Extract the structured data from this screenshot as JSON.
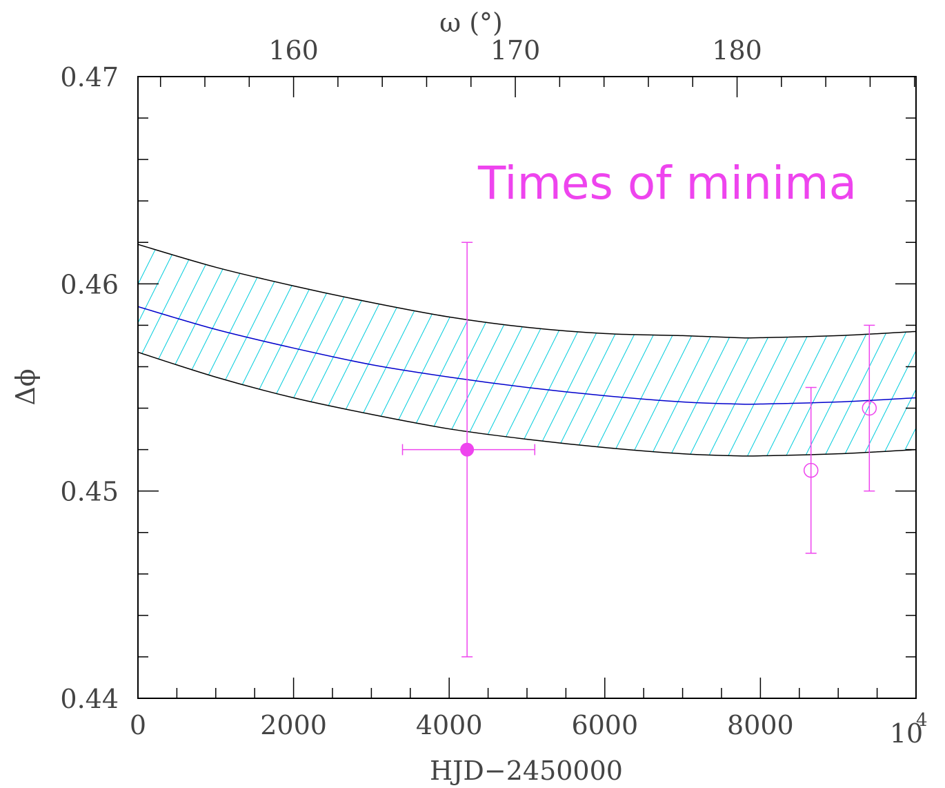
{
  "chart_data": {
    "type": "scatter",
    "title": "",
    "annotation": "Times of minima",
    "xlabel": "HJD−2450000",
    "ylabel": "Δϕ",
    "top_axis_label": "ω (°)",
    "xlim": [
      0,
      10000
    ],
    "ylim": [
      0.44,
      0.47
    ],
    "x_ticks": [
      "0",
      "2000",
      "4000",
      "6000",
      "8000",
      "10"
    ],
    "x_tick_values": [
      0,
      2000,
      4000,
      6000,
      8000,
      10000
    ],
    "x_last_tick_exponent": "4",
    "y_ticks": [
      "0.44",
      "0.45",
      "0.46",
      "0.47"
    ],
    "y_tick_values": [
      0.44,
      0.45,
      0.46,
      0.47
    ],
    "top_ticks": [
      "160",
      "170",
      "180"
    ],
    "top_tick_hjd": [
      2000,
      4850,
      7700
    ],
    "model_curve": {
      "x": [
        0,
        1000,
        2000,
        3000,
        4000,
        5000,
        6000,
        7000,
        7700,
        8000,
        9000,
        10000
      ],
      "center": [
        0.4589,
        0.4578,
        0.4569,
        0.4561,
        0.4555,
        0.455,
        0.4546,
        0.4543,
        0.4542,
        0.4542,
        0.4543,
        0.4545
      ],
      "upper": [
        0.4619,
        0.4608,
        0.4599,
        0.4591,
        0.4584,
        0.4579,
        0.4576,
        0.4575,
        0.4574,
        0.4574,
        0.4575,
        0.4577
      ],
      "lower": [
        0.4567,
        0.4555,
        0.4545,
        0.4537,
        0.453,
        0.4525,
        0.4521,
        0.4518,
        0.4517,
        0.4517,
        0.4518,
        0.452
      ]
    },
    "series": [
      {
        "marker": "filled-circle",
        "points": [
          {
            "x": 4230,
            "y": 0.452,
            "yerr_low": 0.442,
            "yerr_high": 0.462,
            "xerr_low": 3400,
            "xerr_high": 5100
          }
        ]
      },
      {
        "marker": "open-circle",
        "points": [
          {
            "x": 8650,
            "y": 0.451,
            "yerr_low": 0.447,
            "yerr_high": 0.455
          },
          {
            "x": 9400,
            "y": 0.454,
            "yerr_low": 0.45,
            "yerr_high": 0.458
          }
        ]
      }
    ],
    "grid": false,
    "colors": {
      "points": "#ee44ee",
      "model": "#0000cc",
      "band": "#00ccdd",
      "band_edge": "#000000",
      "axes": "#000000"
    }
  }
}
